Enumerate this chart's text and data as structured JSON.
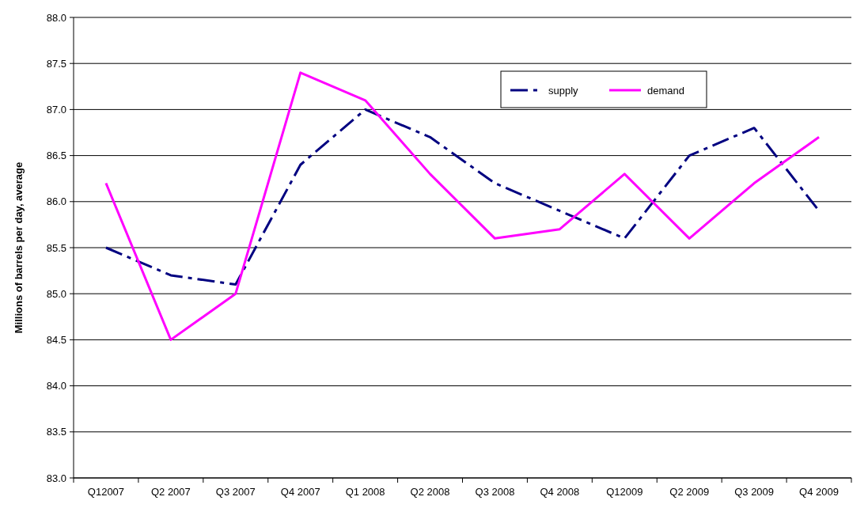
{
  "chart_data": {
    "type": "line",
    "ylabel": "Millions of barrels per day, average",
    "categories": [
      "Q12007",
      "Q2 2007",
      "Q3 2007",
      "Q4 2007",
      "Q1 2008",
      "Q2 2008",
      "Q3 2008",
      "Q4 2008",
      "Q12009",
      "Q2 2009",
      "Q3 2009",
      "Q4 2009"
    ],
    "series": [
      {
        "name": "supply",
        "color": "#000080",
        "line_style": "dashed",
        "values": [
          85.5,
          85.2,
          85.1,
          86.4,
          87.0,
          86.7,
          86.2,
          85.9,
          85.6,
          86.5,
          86.8,
          85.9
        ]
      },
      {
        "name": "demand",
        "color": "#ff00ff",
        "line_style": "solid",
        "values": [
          86.2,
          84.5,
          85.0,
          87.4,
          87.1,
          86.3,
          85.6,
          85.7,
          86.3,
          85.6,
          86.2,
          86.7
        ]
      }
    ],
    "ylim": [
      83.0,
      88.0
    ],
    "yticks": [
      {
        "value": 83,
        "label": "83.0"
      },
      {
        "value": 83.5,
        "label": "83.5"
      },
      {
        "value": 84,
        "label": "84.0"
      },
      {
        "value": 84.5,
        "label": "84.5"
      },
      {
        "value": 85,
        "label": "85.0"
      },
      {
        "value": 85.5,
        "label": "85.5"
      },
      {
        "value": 86,
        "label": "86.0"
      },
      {
        "value": 86.5,
        "label": "86.5"
      },
      {
        "value": 87,
        "label": "87.0"
      },
      {
        "value": 87.5,
        "label": "87.5"
      },
      {
        "value": 88,
        "label": "88.0"
      }
    ],
    "grid": "y",
    "legend": "top right",
    "marker": "none"
  }
}
